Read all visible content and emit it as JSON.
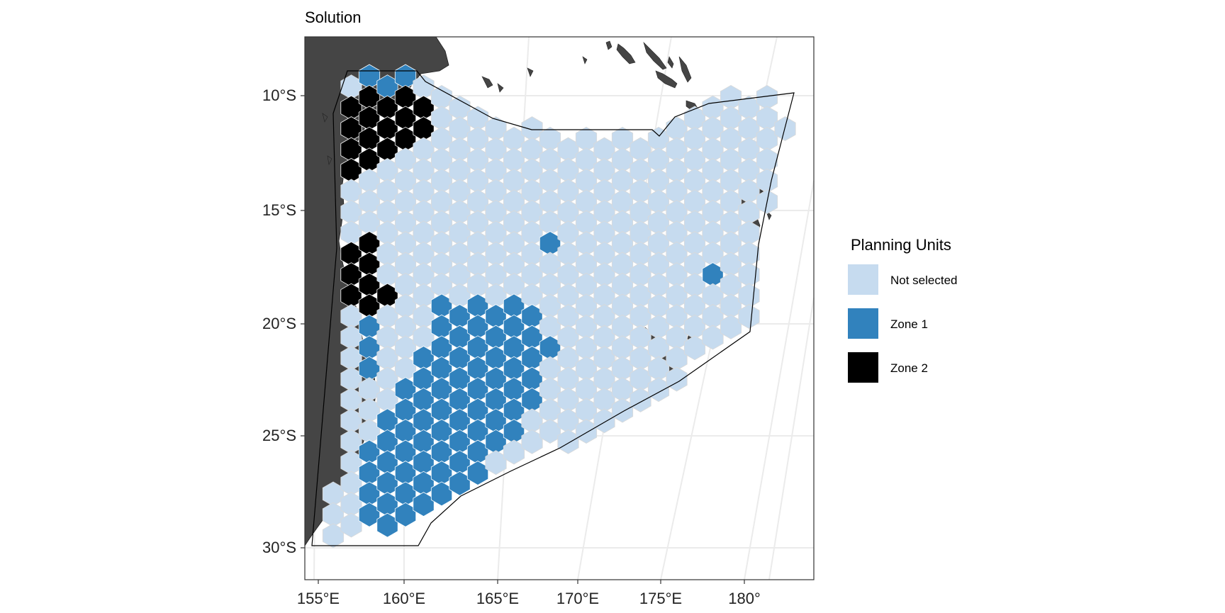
{
  "title": "Solution",
  "map": {
    "x_ticks": [
      "155°E",
      "160°E",
      "165°E",
      "170°E",
      "175°E",
      "180°"
    ],
    "y_ticks": [
      "10°S",
      "15°S",
      "20°S",
      "25°S",
      "30°S"
    ],
    "grid": true,
    "colors": {
      "land": "#454545",
      "not_selected": "#c6dbef",
      "zone_1": "#3182bd",
      "zone_2": "#000000",
      "grid": "#ebebeb",
      "hex_border": "#d9d9d9",
      "boundary": "#000000"
    }
  },
  "legend": {
    "title": "Planning Units",
    "items": [
      {
        "label": "Not selected",
        "color": "#c6dbef"
      },
      {
        "label": "Zone 1",
        "color": "#3182bd"
      },
      {
        "label": "Zone 2",
        "color": "#000000"
      }
    ]
  }
}
